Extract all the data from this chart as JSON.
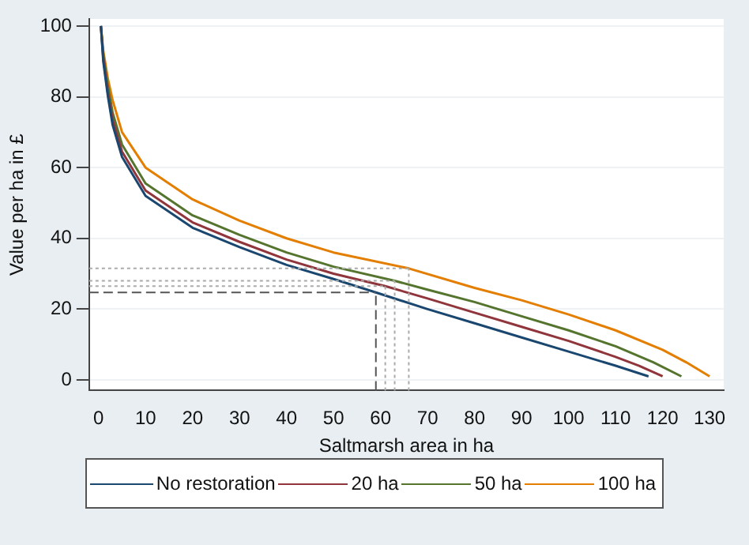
{
  "chart_data": {
    "type": "line",
    "xlabel": "Saltmarsh area in ha",
    "ylabel": "Value per ha in £",
    "xlim": [
      -2,
      133
    ],
    "xticks": [
      0,
      10,
      20,
      30,
      40,
      50,
      60,
      70,
      80,
      90,
      100,
      110,
      120,
      130
    ],
    "ylim": [
      -3,
      102
    ],
    "yticks": [
      0,
      20,
      40,
      60,
      80,
      100
    ],
    "grid": "y",
    "legend": "bottom",
    "marker": "none",
    "line_style": "solid",
    "series": [
      {
        "name": "No restoration",
        "color": "#1a476f",
        "x": [
          0.5,
          1,
          2,
          3,
          5,
          10,
          20,
          30,
          40,
          50,
          59,
          70,
          80,
          90,
          100,
          110,
          117
        ],
        "values": [
          100,
          90,
          80,
          72,
          63,
          52,
          43,
          37.5,
          32.5,
          28.5,
          24.7,
          20,
          16,
          12,
          8,
          4,
          1
        ]
      },
      {
        "name": "20 ha",
        "color": "#90353b",
        "x": [
          0.5,
          1,
          2,
          3,
          5,
          10,
          20,
          30,
          40,
          50,
          61,
          70,
          80,
          90,
          100,
          110,
          115,
          120
        ],
        "values": [
          100,
          91,
          81,
          73.5,
          64.5,
          53.5,
          44.5,
          39,
          34,
          30,
          26.5,
          23,
          19,
          15,
          11,
          6.5,
          4,
          1
        ]
      },
      {
        "name": "50 ha",
        "color": "#55752f",
        "x": [
          0.5,
          1,
          2,
          3,
          5,
          10,
          20,
          30,
          40,
          50,
          63,
          70,
          80,
          90,
          100,
          110,
          118,
          124
        ],
        "values": [
          100,
          92,
          83,
          75.5,
          66.5,
          55.5,
          46.5,
          41,
          36,
          32,
          28,
          25.5,
          22,
          18,
          14,
          9.5,
          5,
          1
        ]
      },
      {
        "name": "100 ha",
        "color": "#e37e00",
        "x": [
          0.5,
          1,
          2,
          3,
          5,
          10,
          20,
          30,
          40,
          50,
          66,
          80,
          90,
          100,
          110,
          120,
          125,
          130
        ],
        "values": [
          100,
          93,
          85,
          79,
          70,
          60,
          51,
          45,
          40,
          36,
          31.5,
          26,
          22.5,
          18.5,
          14,
          8.5,
          5,
          1
        ]
      }
    ],
    "ref_lines": [
      {
        "axis": "y",
        "value": 24.7,
        "color": "#555555",
        "line_style": "dashed"
      },
      {
        "axis": "y",
        "value": 26.5,
        "color": "#aaaaaa",
        "line_style": "dotted"
      },
      {
        "axis": "y",
        "value": 28,
        "color": "#aaaaaa",
        "line_style": "dotted"
      },
      {
        "axis": "y",
        "value": 31.5,
        "color": "#aaaaaa",
        "line_style": "dotted"
      },
      {
        "axis": "x",
        "value": 59,
        "color": "#555555",
        "line_style": "dashed"
      },
      {
        "axis": "x",
        "value": 61,
        "color": "#aaaaaa",
        "line_style": "dotted"
      },
      {
        "axis": "x",
        "value": 63,
        "color": "#aaaaaa",
        "line_style": "dotted"
      },
      {
        "axis": "x",
        "value": 66,
        "color": "#aaaaaa",
        "line_style": "dotted"
      }
    ]
  }
}
